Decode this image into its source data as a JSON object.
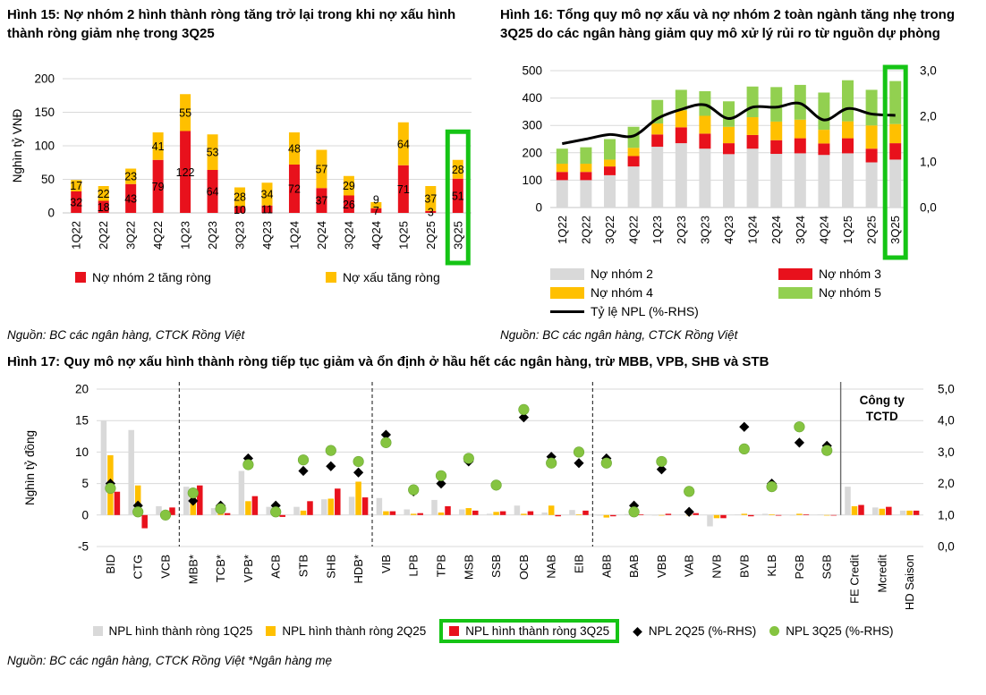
{
  "colors": {
    "red": "#e8111c",
    "yellow": "#ffc000",
    "gray": "#d9d9d9",
    "green_bar": "#92d050",
    "green_marker": "#85c440",
    "black": "#000000",
    "highlight_green": "#15c415",
    "gridline": "#d9d9d9"
  },
  "fig15": {
    "title": "Hình 15: Nợ nhóm 2 hình thành ròng tăng trở lại trong khi nợ xấu hình thành ròng giảm nhẹ trong 3Q25",
    "source": "Nguồn: BC các ngân hàng, CTCK Rồng Việt",
    "legend": [
      {
        "label": "Nợ nhóm 2 tăng ròng",
        "color": "#e8111c"
      },
      {
        "label": "Nợ xấu tăng ròng",
        "color": "#ffc000"
      }
    ]
  },
  "fig16": {
    "title": "Hình 16: Tổng quy mô nợ xấu và nợ nhóm 2 toàn ngành tăng nhẹ trong 3Q25 do các ngân hàng giảm quy mô xử lý rủi ro từ nguồn dự phòng",
    "source": "Nguồn: BC các ngân hàng, CTCK Rồng Việt",
    "legend": [
      {
        "label": "Nợ nhóm 2",
        "color": "#d9d9d9"
      },
      {
        "label": "Nợ nhóm 3",
        "color": "#e8111c"
      },
      {
        "label": "Nợ nhóm 4",
        "color": "#ffc000"
      },
      {
        "label": "Nợ nhóm 5",
        "color": "#92d050"
      },
      {
        "label": "Tỷ lệ NPL (%-RHS)",
        "color": "#000000"
      }
    ]
  },
  "fig17": {
    "title": "Hình 17: Quy mô nợ xấu hình thành ròng tiếp tục giảm và ổn định ở hầu hết các ngân hàng, trừ MBB, VPB, SHB và STB",
    "source": "Nguồn: BC các ngân hàng, CTCK Rồng Việt *Ngân hàng mẹ",
    "legend": [
      {
        "label": "NPL hình thành ròng 1Q25",
        "color": "#d9d9d9"
      },
      {
        "label": "NPL hình thành ròng 2Q25",
        "color": "#ffc000"
      },
      {
        "label": "NPL hình thành ròng 3Q25",
        "color": "#e8111c",
        "highlighted": true
      },
      {
        "label": "NPL 2Q25 (%-RHS)",
        "shape": "diamond",
        "color": "#000000"
      },
      {
        "label": "NPL 3Q25 (%-RHS)",
        "shape": "circle",
        "color": "#85c440"
      }
    ]
  },
  "chart_data": [
    {
      "id": "fig15",
      "type": "bar",
      "stacked": true,
      "title": "Hình 15: Nợ nhóm 2 hình thành ròng tăng trở lại trong khi nợ xấu hình thành ròng giảm nhẹ trong 3Q25",
      "ylabel": "Nghìn tỷ VNĐ",
      "categories": [
        "1Q22",
        "2Q22",
        "3Q22",
        "4Q22",
        "1Q23",
        "2Q23",
        "3Q23",
        "4Q23",
        "1Q24",
        "2Q24",
        "3Q24",
        "4Q24",
        "1Q25",
        "2Q25",
        "3Q25"
      ],
      "series": [
        {
          "name": "Nợ nhóm 2 tăng ròng",
          "color": "#e8111c",
          "values": [
            32,
            18,
            43,
            79,
            122,
            64,
            10,
            11,
            72,
            37,
            26,
            7,
            71,
            3,
            51
          ]
        },
        {
          "name": "Nợ xấu tăng ròng",
          "color": "#ffc000",
          "values": [
            17,
            22,
            23,
            41,
            55,
            53,
            28,
            34,
            48,
            57,
            29,
            9,
            64,
            37,
            28
          ]
        }
      ],
      "ylim": [
        0,
        200
      ],
      "yticks": [
        0,
        50,
        100,
        150,
        200
      ],
      "data_labels": true,
      "grid": true,
      "highlight_category": "3Q25"
    },
    {
      "id": "fig16",
      "type": "bar",
      "stacked": true,
      "title": "Hình 16: Tổng quy mô nợ xấu và nợ nhóm 2 toàn ngành tăng nhẹ trong 3Q25",
      "categories": [
        "1Q22",
        "2Q22",
        "3Q22",
        "4Q22",
        "1Q23",
        "2Q23",
        "3Q23",
        "4Q23",
        "1Q24",
        "2Q24",
        "3Q24",
        "4Q24",
        "1Q25",
        "2Q25",
        "3Q25"
      ],
      "series": [
        {
          "name": "Nợ nhóm 2",
          "color": "#d9d9d9",
          "values": [
            100,
            100,
            118,
            150,
            222,
            235,
            215,
            195,
            215,
            196,
            198,
            192,
            198,
            165,
            175
          ]
        },
        {
          "name": "Nợ nhóm 3",
          "color": "#e8111c",
          "values": [
            30,
            30,
            32,
            38,
            45,
            58,
            55,
            40,
            50,
            50,
            55,
            42,
            55,
            50,
            60
          ]
        },
        {
          "name": "Nợ nhóm 4",
          "color": "#ffc000",
          "values": [
            30,
            30,
            25,
            30,
            40,
            62,
            65,
            60,
            65,
            68,
            68,
            50,
            62,
            85,
            70
          ]
        },
        {
          "name": "Nợ nhóm 5",
          "color": "#92d050",
          "values": [
            55,
            60,
            75,
            77,
            86,
            75,
            90,
            93,
            112,
            126,
            127,
            136,
            150,
            130,
            157
          ]
        }
      ],
      "line": {
        "name": "Tỷ lệ NPL (%-RHS)",
        "color": "#000000",
        "values": [
          1.4,
          1.5,
          1.6,
          1.57,
          1.95,
          2.15,
          2.25,
          1.95,
          2.2,
          2.2,
          2.28,
          1.92,
          2.17,
          2.05,
          2.02
        ]
      },
      "ylim": [
        0,
        500
      ],
      "yticks": [
        0,
        100,
        200,
        300,
        400,
        500
      ],
      "y2lim": [
        0,
        3
      ],
      "y2tick_values": [
        0,
        1,
        2,
        3
      ],
      "y2tick_labels": [
        "0,0",
        "1,0",
        "2,0",
        "3,0"
      ],
      "grid": true,
      "highlight_category": "3Q25"
    },
    {
      "id": "fig17",
      "type": "bar+scatter",
      "title": "Hình 17: Quy mô nợ xấu hình thành ròng",
      "ylabel": "Nghìn tỷ đồng",
      "categories": [
        "BID",
        "CTG",
        "VCB",
        "MBB*",
        "TCB*",
        "VPB*",
        "ACB",
        "STB",
        "SHB",
        "HDB*",
        "VIB",
        "LPB",
        "TPB",
        "MSB",
        "SSB",
        "OCB",
        "NAB",
        "EIB",
        "ABB",
        "BAB",
        "VBB",
        "VAB",
        "NVB",
        "BVB",
        "KLB",
        "PGB",
        "SGB",
        "FE Credit",
        "Mcredit",
        "HD Saison"
      ],
      "series": [
        {
          "name": "NPL hình thành ròng 1Q25",
          "color": "#d9d9d9",
          "values": [
            15.0,
            13.5,
            1.4,
            4.5,
            1.1,
            7.0,
            1.3,
            1.3,
            2.5,
            2.9,
            2.7,
            0.9,
            2.4,
            0.9,
            0.2,
            1.5,
            0.4,
            0.8,
            -0.1,
            0.15,
            -0.1,
            0.1,
            -1.8,
            0.1,
            0.2,
            0.0,
            0.1,
            4.5,
            1.2,
            0.7
          ]
        },
        {
          "name": "NPL hình thành ròng 2Q25",
          "color": "#ffc000",
          "values": [
            9.5,
            4.7,
            0.1,
            2.8,
            0.9,
            2.2,
            0.1,
            0.7,
            2.6,
            5.3,
            0.6,
            0.2,
            0.4,
            1.1,
            0.5,
            0.2,
            1.5,
            0.1,
            -0.4,
            0.1,
            0.0,
            0.0,
            -0.5,
            0.2,
            0.1,
            0.2,
            0.0,
            1.4,
            1.0,
            0.7
          ]
        },
        {
          "name": "NPL hình thành ròng 3Q25",
          "color": "#e8111c",
          "values": [
            3.7,
            -2.1,
            1.2,
            4.7,
            0.3,
            3.0,
            -0.3,
            2.2,
            4.2,
            2.8,
            0.6,
            0.3,
            1.4,
            0.7,
            0.6,
            0.6,
            -0.2,
            0.7,
            -0.2,
            0.1,
            0.2,
            0.3,
            -0.5,
            -0.2,
            -0.1,
            0.1,
            0.0,
            1.6,
            1.3,
            0.7
          ]
        }
      ],
      "markers": [
        {
          "name": "NPL 2Q25 (%-RHS)",
          "shape": "diamond",
          "color": "#000000",
          "values": [
            2.0,
            1.3,
            1.0,
            1.45,
            1.3,
            2.8,
            1.3,
            2.4,
            2.55,
            2.35,
            3.55,
            1.75,
            2.0,
            2.7,
            1.95,
            4.1,
            2.85,
            2.65,
            2.8,
            1.3,
            2.45,
            1.1,
            null,
            3.8,
            2.0,
            3.3,
            3.2,
            null,
            null,
            null
          ]
        },
        {
          "name": "NPL 3Q25 (%-RHS)",
          "shape": "circle",
          "color": "#85c440",
          "values": [
            1.85,
            1.1,
            1.0,
            1.7,
            1.2,
            2.6,
            1.1,
            2.75,
            3.05,
            2.7,
            3.3,
            1.8,
            2.25,
            2.8,
            1.95,
            4.35,
            2.65,
            3.0,
            2.65,
            1.1,
            2.7,
            1.75,
            null,
            3.1,
            1.9,
            3.8,
            3.05,
            null,
            null,
            null
          ]
        }
      ],
      "ylim": [
        -5,
        20
      ],
      "yticks": [
        -5,
        0,
        5,
        10,
        15,
        20
      ],
      "y2lim": [
        0,
        5
      ],
      "y2tick_values": [
        0,
        1,
        2,
        3,
        4,
        5
      ],
      "y2tick_labels": [
        "0,0",
        "1,0",
        "2,0",
        "3,0",
        "4,0",
        "5,0"
      ],
      "dashed_separators_after": [
        "VCB",
        "HDB*",
        "EIB"
      ],
      "solid_separator_after": "SGB",
      "annotation_lines": [
        "Công ty",
        "TCTD"
      ],
      "grid": true,
      "highlight_legend": "NPL hình thành ròng 3Q25"
    }
  ]
}
